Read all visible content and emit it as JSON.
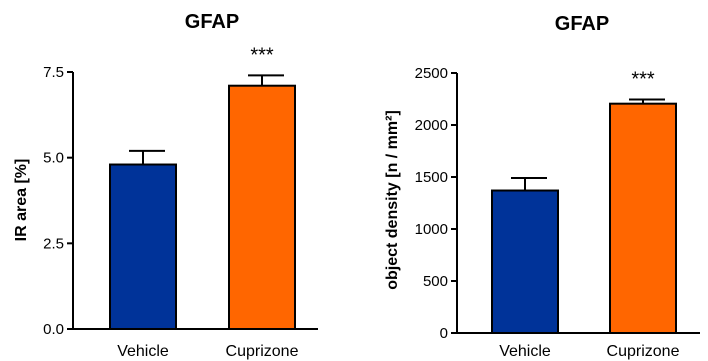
{
  "chart_data": [
    {
      "type": "bar",
      "title": "GFAP",
      "xlabel": "",
      "ylabel": "IR area [%]",
      "categories": [
        "Vehicle",
        "Cuprizone"
      ],
      "values": [
        4.8,
        7.1
      ],
      "errors": [
        0.4,
        0.3
      ],
      "colors": [
        "#003399",
        "#ff6600"
      ],
      "ylim": [
        0,
        7.5
      ],
      "yticks": [
        "0.0",
        "2.5",
        "5.0",
        "7.5"
      ],
      "ytick_values": [
        0,
        2.5,
        5,
        7.5
      ],
      "annotations": [
        {
          "category": "Cuprizone",
          "text": "***"
        }
      ],
      "grid": false
    },
    {
      "type": "bar",
      "title": "GFAP",
      "xlabel": "",
      "ylabel": "object density [n / mm²]",
      "categories": [
        "Vehicle",
        "Cuprizone"
      ],
      "values": [
        1370,
        2205
      ],
      "errors": [
        120,
        40
      ],
      "colors": [
        "#003399",
        "#ff6600"
      ],
      "ylim": [
        0,
        2500
      ],
      "yticks": [
        "0",
        "500",
        "1000",
        "1500",
        "2000",
        "2500"
      ],
      "ytick_values": [
        0,
        500,
        1000,
        1500,
        2000,
        2500
      ],
      "annotations": [
        {
          "category": "Cuprizone",
          "text": "***"
        }
      ],
      "grid": false
    }
  ]
}
